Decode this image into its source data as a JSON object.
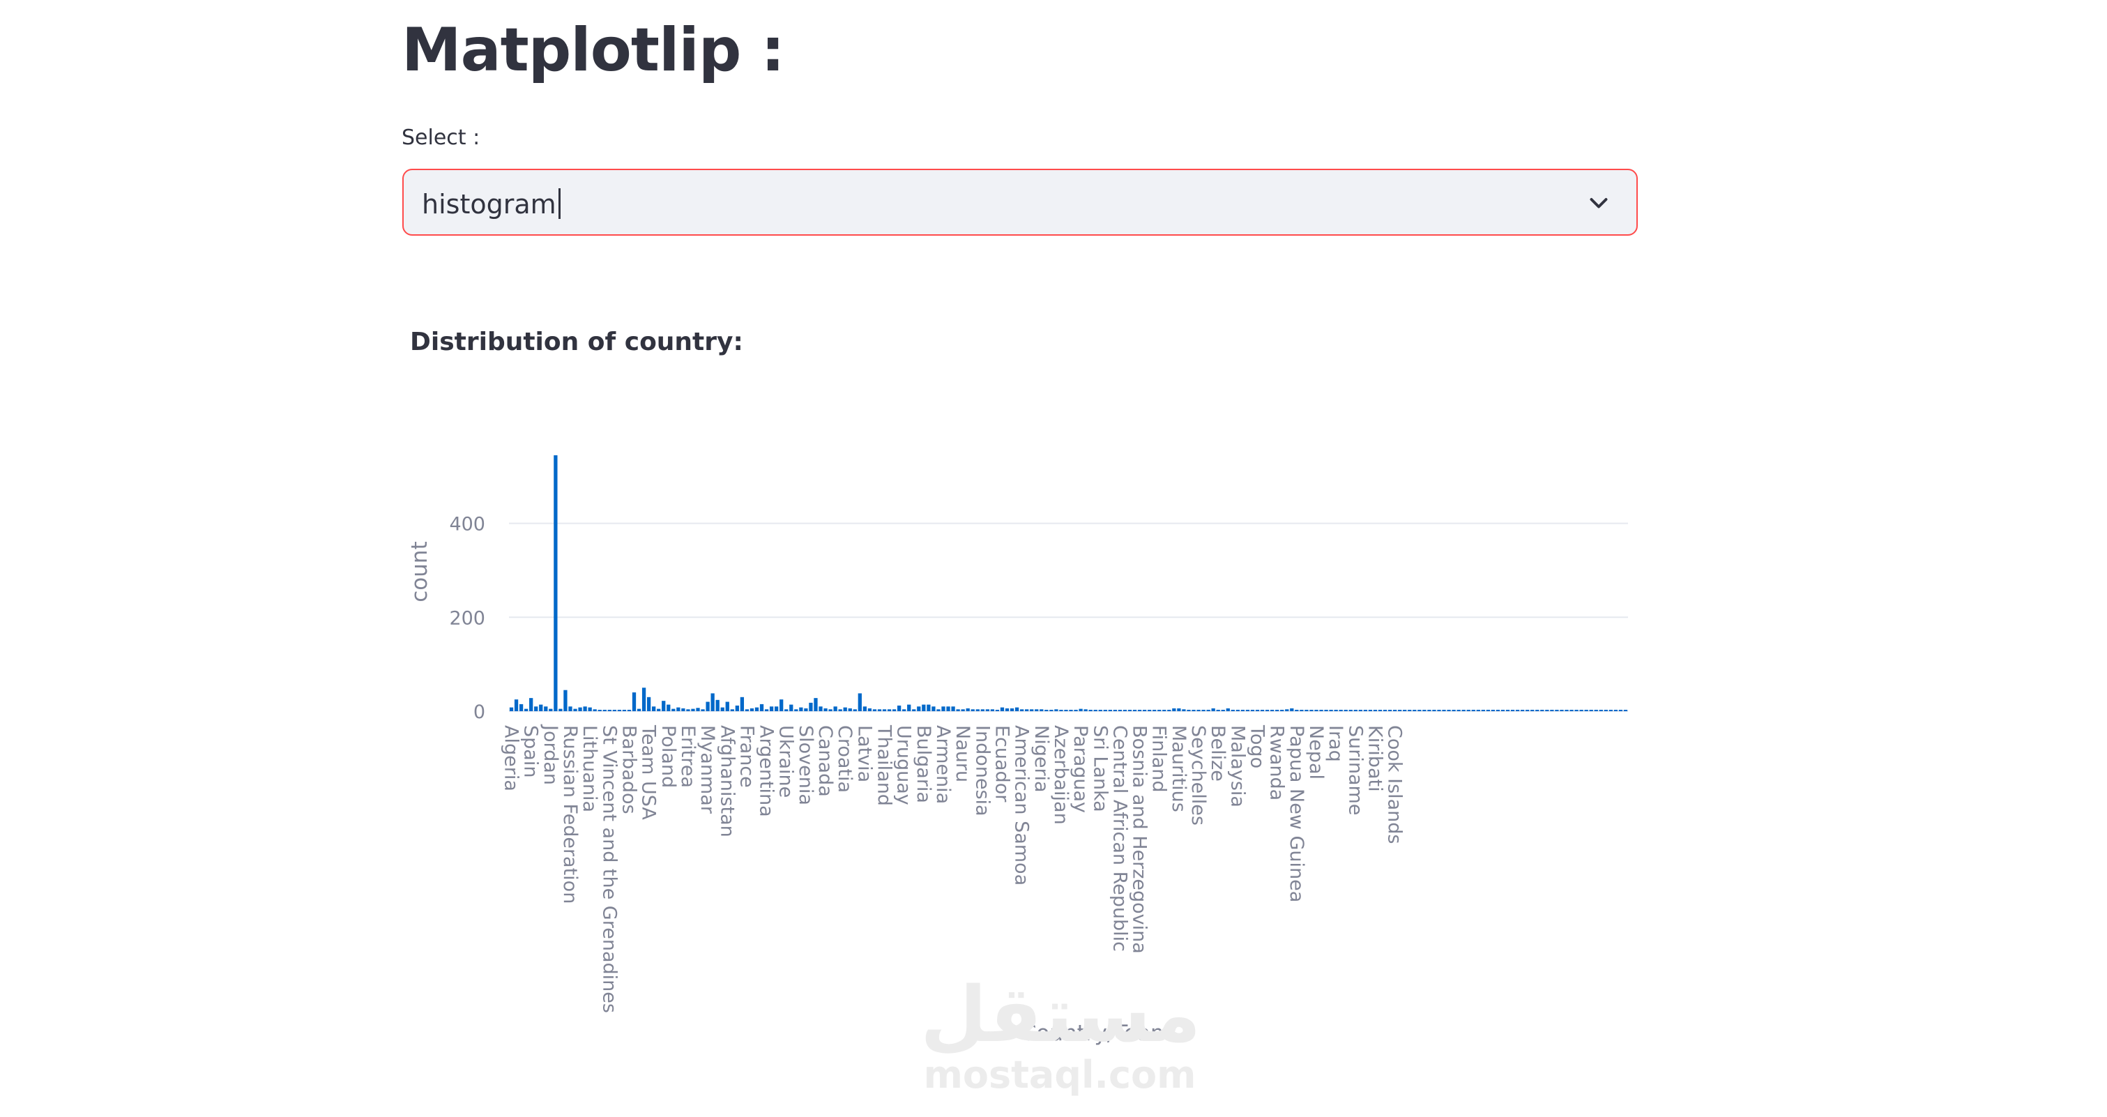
{
  "page": {
    "title": "Matplotlip :"
  },
  "select": {
    "label": "Select :",
    "value": "histogram",
    "icon": "chevron-down-icon"
  },
  "chart_heading": "Distribution of country:",
  "watermark": {
    "arabic": "مستقل",
    "latin": "mostaql.com"
  },
  "colors": {
    "bar": "#0068c9",
    "accent": "#ff4b4b",
    "text": "#31333f",
    "grid": "#e6e9ef",
    "axis_text": "#808495"
  },
  "chart_data": {
    "type": "bar",
    "title": "",
    "xlabel": "Country/Team",
    "ylabel": "count",
    "ylim": [
      0,
      560
    ],
    "yticks": [
      0,
      200,
      400
    ],
    "grid": true,
    "values": [
      8,
      25,
      15,
      5,
      28,
      10,
      14,
      10,
      5,
      545,
      5,
      45,
      10,
      5,
      8,
      10,
      8,
      4,
      3,
      3,
      3,
      3,
      3,
      3,
      3,
      40,
      5,
      50,
      30,
      10,
      5,
      22,
      14,
      5,
      8,
      6,
      4,
      5,
      7,
      4,
      20,
      38,
      24,
      8,
      20,
      4,
      12,
      30,
      4,
      6,
      8,
      15,
      4,
      10,
      10,
      25,
      4,
      14,
      4,
      8,
      6,
      18,
      28,
      10,
      6,
      4,
      10,
      4,
      8,
      6,
      4,
      38,
      10,
      6,
      4,
      4,
      4,
      4,
      4,
      12,
      4,
      14,
      4,
      10,
      14,
      14,
      10,
      4,
      10,
      10,
      10,
      4,
      4,
      6,
      4,
      4,
      4,
      4,
      4,
      3,
      8,
      6,
      6,
      8,
      4,
      4,
      4,
      4,
      4,
      3,
      3,
      4,
      3,
      3,
      3,
      3,
      5,
      4,
      3,
      3,
      3,
      3,
      3,
      3,
      3,
      3,
      3,
      3,
      3,
      3,
      3,
      3,
      3,
      3,
      3,
      6,
      6,
      4,
      3,
      3,
      3,
      3,
      3,
      6,
      3,
      3,
      6,
      3,
      3,
      3,
      3,
      3,
      3,
      3,
      3,
      3,
      3,
      3,
      4,
      6,
      3,
      3,
      3,
      3,
      3,
      3,
      3,
      3,
      3,
      3,
      3,
      3,
      3,
      3,
      3,
      3,
      3,
      3,
      3,
      3,
      3,
      3,
      3,
      3,
      3,
      3,
      3,
      3,
      3,
      3,
      3,
      3,
      3,
      3,
      3,
      3,
      3,
      3,
      3,
      3,
      3,
      3,
      3,
      3,
      3,
      3,
      3,
      3,
      3,
      3,
      3,
      3,
      3,
      3,
      3,
      3,
      3,
      3,
      3,
      3,
      3,
      3,
      3,
      3,
      3,
      3,
      3,
      3
    ],
    "categories_shown": [
      {
        "index": 0,
        "label": "Algeria"
      },
      {
        "index": 4,
        "label": "Spain"
      },
      {
        "index": 8,
        "label": "Jordan"
      },
      {
        "index": 12,
        "label": "Russian Federation"
      },
      {
        "index": 16,
        "label": "Lithuania"
      },
      {
        "index": 20,
        "label": "St Vincent and the Grenadines"
      },
      {
        "index": 24,
        "label": "Barbados"
      },
      {
        "index": 28,
        "label": "Team USA"
      },
      {
        "index": 32,
        "label": "Poland"
      },
      {
        "index": 36,
        "label": "Eritrea"
      },
      {
        "index": 40,
        "label": "Myanmar"
      },
      {
        "index": 44,
        "label": "Afghanistan"
      },
      {
        "index": 48,
        "label": "France"
      },
      {
        "index": 52,
        "label": "Argentina"
      },
      {
        "index": 56,
        "label": "Ukraine"
      },
      {
        "index": 60,
        "label": "Slovenia"
      },
      {
        "index": 64,
        "label": "Canada"
      },
      {
        "index": 68,
        "label": "Croatia"
      },
      {
        "index": 72,
        "label": "Latvia"
      },
      {
        "index": 76,
        "label": "Thailand"
      },
      {
        "index": 80,
        "label": "Uruguay"
      },
      {
        "index": 84,
        "label": "Bulgaria"
      },
      {
        "index": 88,
        "label": "Armenia"
      },
      {
        "index": 92,
        "label": "Nauru"
      },
      {
        "index": 96,
        "label": "Indonesia"
      },
      {
        "index": 100,
        "label": "Ecuador"
      },
      {
        "index": 104,
        "label": "American Samoa"
      },
      {
        "index": 108,
        "label": "Nigeria"
      },
      {
        "index": 112,
        "label": "Azerbaijan"
      },
      {
        "index": 116,
        "label": "Paraguay"
      },
      {
        "index": 120,
        "label": "Sri Lanka"
      },
      {
        "index": 124,
        "label": "Central African Republic"
      },
      {
        "index": 128,
        "label": "Bosnia and Herzegovina"
      },
      {
        "index": 132,
        "label": "Finland"
      },
      {
        "index": 136,
        "label": "Mauritius"
      },
      {
        "index": 140,
        "label": "Seychelles"
      },
      {
        "index": 144,
        "label": "Belize"
      },
      {
        "index": 148,
        "label": "Malaysia"
      },
      {
        "index": 152,
        "label": "Togo"
      },
      {
        "index": 156,
        "label": "Rwanda"
      },
      {
        "index": 160,
        "label": "Papua New Guinea"
      },
      {
        "index": 164,
        "label": "Nepal"
      },
      {
        "index": 168,
        "label": "Iraq"
      },
      {
        "index": 172,
        "label": "Suriname"
      },
      {
        "index": 176,
        "label": "Kiribati"
      },
      {
        "index": 180,
        "label": "Cook Islands"
      }
    ]
  }
}
